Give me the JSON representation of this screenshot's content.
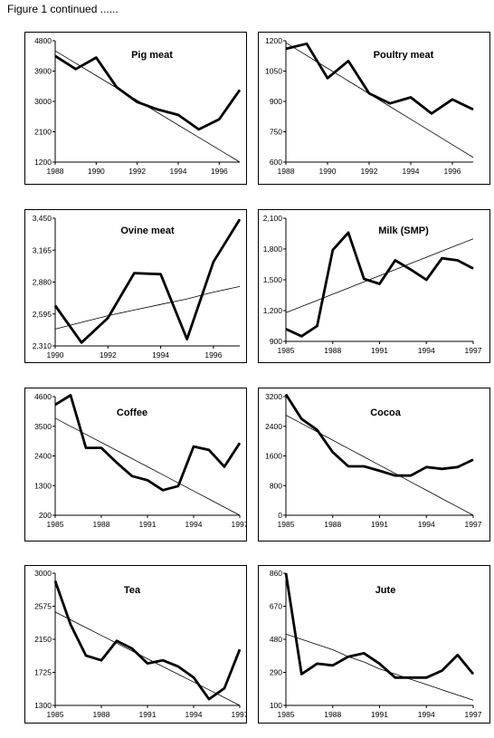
{
  "caption": "Figure 1 continued ......",
  "chart_data": [
    {
      "type": "line",
      "title": "Pig meat",
      "x": [
        1988,
        1989,
        1990,
        1991,
        1992,
        1993,
        1994,
        1995,
        1996,
        1997
      ],
      "xlim": [
        1988,
        1997
      ],
      "xticks": [
        "1988",
        "1990",
        "1992",
        "1994",
        "1996"
      ],
      "ylim": [
        1200,
        4800
      ],
      "yticks": [
        "4800",
        "3900",
        "3000",
        "2100",
        "1200"
      ],
      "series": [
        {
          "values": [
            4350,
            3960,
            4300,
            3420,
            2980,
            2760,
            2600,
            2170,
            2470,
            3340
          ]
        },
        {
          "values": [
            4500,
            4133,
            3767,
            3400,
            3033,
            2667,
            2300,
            1933,
            1567,
            1200
          ],
          "style": "trend"
        }
      ]
    },
    {
      "type": "line",
      "title": "Poultry meat",
      "x": [
        1988,
        1989,
        1990,
        1991,
        1992,
        1993,
        1994,
        1995,
        1996,
        1997
      ],
      "xlim": [
        1988,
        1997
      ],
      "xticks": [
        "1988",
        "1990",
        "1992",
        "1994",
        "1996"
      ],
      "ylim": [
        600,
        1200
      ],
      "yticks": [
        "1200",
        "1050",
        "900",
        "750",
        "600"
      ],
      "series": [
        {
          "values": [
            1160,
            1185,
            1015,
            1100,
            940,
            890,
            920,
            840,
            910,
            860
          ]
        },
        {
          "values": [
            1190,
            1127,
            1064,
            1001,
            938,
            875,
            812,
            749,
            686,
            623
          ],
          "style": "trend"
        }
      ]
    },
    {
      "type": "line",
      "title": "Ovine meat",
      "x": [
        1990,
        1991,
        1992,
        1993,
        1994,
        1995,
        1996,
        1997
      ],
      "xlim": [
        1990,
        1997
      ],
      "xticks": [
        "1990",
        "1992",
        "1994",
        "1996"
      ],
      "ylim": [
        2310,
        3450
      ],
      "yticks": [
        "3,450",
        "3,165",
        "2,880",
        "2,595",
        "2,310"
      ],
      "series": [
        {
          "values": [
            2670,
            2340,
            2560,
            2960,
            2950,
            2370,
            3060,
            3440
          ]
        },
        {
          "values": [
            2460,
            2520,
            2580,
            2630,
            2680,
            2730,
            2790,
            2840
          ],
          "style": "trend"
        }
      ]
    },
    {
      "type": "line",
      "title": "Milk (SMP)",
      "x": [
        1985,
        1986,
        1987,
        1988,
        1989,
        1990,
        1991,
        1992,
        1993,
        1994,
        1995,
        1996,
        1997
      ],
      "xlim": [
        1985,
        1997
      ],
      "xticks": [
        "1985",
        "1988",
        "1991",
        "1994",
        "1997"
      ],
      "ylim": [
        900,
        2100
      ],
      "yticks": [
        "2,100",
        "1,800",
        "1,500",
        "1,200",
        "900"
      ],
      "series": [
        {
          "values": [
            1020,
            950,
            1050,
            1790,
            1960,
            1510,
            1460,
            1690,
            1600,
            1500,
            1710,
            1690,
            1610
          ]
        },
        {
          "values": [
            1180,
            1240,
            1300,
            1360,
            1420,
            1480,
            1540,
            1600,
            1660,
            1720,
            1780,
            1840,
            1900
          ],
          "style": "trend"
        }
      ]
    },
    {
      "type": "line",
      "title": "Coffee",
      "x": [
        1985,
        1986,
        1987,
        1988,
        1989,
        1990,
        1991,
        1992,
        1993,
        1994,
        1995,
        1996,
        1997
      ],
      "xlim": [
        1985,
        1997
      ],
      "xticks": [
        "1985",
        "1988",
        "1991",
        "1994",
        "1997"
      ],
      "ylim": [
        200,
        4600
      ],
      "yticks": [
        "4600",
        "3500",
        "2400",
        "1300",
        "200"
      ],
      "series": [
        {
          "values": [
            4300,
            4650,
            2700,
            2700,
            2150,
            1650,
            1500,
            1130,
            1280,
            2750,
            2620,
            2000,
            2880
          ]
        },
        {
          "values": [
            3800,
            3500,
            3200,
            2900,
            2600,
            2300,
            2000,
            1700,
            1400,
            1100,
            800,
            500,
            200
          ],
          "style": "trend"
        }
      ]
    },
    {
      "type": "line",
      "title": "Cocoa",
      "x": [
        1985,
        1986,
        1987,
        1988,
        1989,
        1990,
        1991,
        1992,
        1993,
        1994,
        1995,
        1996,
        1997
      ],
      "xlim": [
        1985,
        1997
      ],
      "xticks": [
        "1985",
        "1988",
        "1991",
        "1994",
        "1997"
      ],
      "ylim": [
        0,
        3200
      ],
      "yticks": [
        "3200",
        "2400",
        "1600",
        "800",
        "0"
      ],
      "series": [
        {
          "values": [
            3260,
            2600,
            2300,
            1700,
            1320,
            1320,
            1200,
            1070,
            1070,
            1300,
            1250,
            1300,
            1500
          ]
        },
        {
          "values": [
            2700,
            2475,
            2250,
            2025,
            1800,
            1575,
            1350,
            1125,
            900,
            675,
            450,
            225,
            0
          ],
          "style": "trend"
        }
      ]
    },
    {
      "type": "line",
      "title": "Tea",
      "x": [
        1985,
        1986,
        1987,
        1988,
        1989,
        1990,
        1991,
        1992,
        1993,
        1994,
        1995,
        1996,
        1997
      ],
      "xlim": [
        1985,
        1997
      ],
      "xticks": [
        "1985",
        "1988",
        "1991",
        "1994",
        "1997"
      ],
      "ylim": [
        1300,
        3000
      ],
      "yticks": [
        "3000",
        "2575",
        "2150",
        "1725",
        "1300"
      ],
      "series": [
        {
          "values": [
            2900,
            2340,
            1940,
            1880,
            2130,
            2030,
            1840,
            1880,
            1800,
            1660,
            1380,
            1520,
            2020
          ]
        },
        {
          "values": [
            2500,
            2400,
            2300,
            2200,
            2100,
            2000,
            1900,
            1800,
            1700,
            1600,
            1500,
            1400,
            1300
          ],
          "style": "trend"
        }
      ]
    },
    {
      "type": "line",
      "title": "Jute",
      "x": [
        1985,
        1986,
        1987,
        1988,
        1989,
        1990,
        1991,
        1992,
        1993,
        1994,
        1995,
        1996,
        1997
      ],
      "xlim": [
        1985,
        1997
      ],
      "xticks": [
        "1985",
        "1988",
        "1991",
        "1994",
        "1997"
      ],
      "ylim": [
        100,
        860
      ],
      "yticks": [
        "860",
        "670",
        "480",
        "290",
        "100"
      ],
      "series": [
        {
          "values": [
            860,
            280,
            340,
            330,
            380,
            400,
            340,
            260,
            260,
            260,
            300,
            390,
            280
          ]
        },
        {
          "values": [
            510,
            480,
            450,
            420,
            380,
            350,
            310,
            280,
            250,
            220,
            190,
            160,
            130
          ],
          "style": "trend"
        }
      ]
    }
  ]
}
